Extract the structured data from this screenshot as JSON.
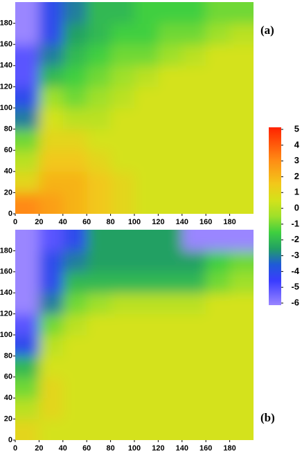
{
  "chart_data": [
    {
      "type": "heatmap",
      "label": "(a)",
      "x": [
        10,
        30,
        50,
        70,
        90,
        110,
        130,
        150,
        170,
        190
      ],
      "y": [
        10,
        30,
        50,
        70,
        90,
        110,
        130,
        150,
        170,
        190
      ],
      "z": [
        [
          3,
          2.5,
          2,
          1.5,
          1,
          0.5,
          0.5,
          0.5,
          0.5,
          0.5
        ],
        [
          1,
          2,
          2,
          1.5,
          1,
          0.5,
          0.5,
          0.5,
          0.5,
          0.5
        ],
        [
          0,
          1.5,
          1.5,
          1,
          0.5,
          0.5,
          0.5,
          0.5,
          0.5,
          0.5
        ],
        [
          -1,
          1,
          1,
          0.5,
          0.5,
          0.5,
          0.5,
          0.5,
          0.5,
          0.5
        ],
        [
          -3,
          0.5,
          0,
          0,
          0.5,
          0.5,
          0.5,
          0.5,
          0.5,
          0.5
        ],
        [
          -4,
          -0.5,
          -1,
          -0.5,
          0,
          0.5,
          0.5,
          0.5,
          0.5,
          0.5
        ],
        [
          -5,
          -2,
          -1.5,
          -1,
          -0.5,
          0,
          0.5,
          0.5,
          0.5,
          0.5
        ],
        [
          -5,
          -3,
          -2,
          -1.5,
          -1,
          -1,
          -0.5,
          0,
          0.5,
          0.5
        ],
        [
          -6,
          -4,
          -2.5,
          -2,
          -1.5,
          -1.5,
          -1,
          -1,
          -0.5,
          0
        ],
        [
          -6,
          -4,
          -3,
          -2,
          -2,
          -1.5,
          -1.5,
          -1.5,
          -1,
          -1
        ]
      ],
      "xlim": [
        0,
        200
      ],
      "ylim": [
        0,
        200
      ],
      "xticks": [
        0,
        20,
        40,
        60,
        80,
        100,
        120,
        140,
        160,
        180
      ],
      "yticks": [
        0,
        20,
        40,
        60,
        80,
        100,
        120,
        140,
        160,
        180
      ]
    },
    {
      "type": "heatmap",
      "label": "(b)",
      "x": [
        10,
        30,
        50,
        70,
        90,
        110,
        130,
        150,
        170,
        190
      ],
      "y": [
        10,
        30,
        50,
        70,
        90,
        110,
        130,
        150,
        170,
        190
      ],
      "z": [
        [
          1,
          0.5,
          0.5,
          0.5,
          0.5,
          0.5,
          0.5,
          0.5,
          0.5,
          0.5
        ],
        [
          0,
          1,
          0.5,
          0.5,
          0.5,
          0.5,
          0.5,
          0.5,
          0.5,
          0.5
        ],
        [
          -1,
          1,
          0.5,
          0.5,
          0.5,
          0.5,
          0.5,
          0.5,
          0.5,
          0.5
        ],
        [
          -2,
          0.5,
          0.5,
          0.5,
          0.5,
          0.5,
          0.5,
          0.5,
          0.5,
          0.5
        ],
        [
          -4,
          0,
          0.5,
          0.5,
          0.5,
          0.5,
          0.5,
          0.5,
          0.5,
          0.5
        ],
        [
          -5,
          -1,
          0,
          0.5,
          0.5,
          0.5,
          0.5,
          0.5,
          0.5,
          0.5
        ],
        [
          -6,
          -3,
          -1,
          -0.5,
          0,
          0,
          0,
          0,
          0.5,
          0.5
        ],
        [
          -6,
          -4,
          -2,
          -2,
          -2,
          -2,
          -2,
          -2,
          -1,
          -0.5
        ],
        [
          -6,
          -4,
          -3,
          -2.5,
          -2.5,
          -2.5,
          -2.5,
          -2.5,
          -1.5,
          -1
        ],
        [
          -6,
          -5,
          -4,
          -2.5,
          -2.5,
          -2.5,
          -2.5,
          -6,
          -6,
          -6
        ]
      ],
      "xlim": [
        0,
        200
      ],
      "ylim": [
        0,
        200
      ],
      "xticks": [
        0,
        20,
        40,
        60,
        80,
        100,
        120,
        140,
        160,
        180
      ],
      "yticks": [
        0,
        20,
        40,
        60,
        80,
        100,
        120,
        140,
        160,
        180
      ]
    },
    {
      "type": "colorbar",
      "zlim": [
        -6,
        5
      ],
      "zticks": [
        5,
        4,
        3,
        2,
        1,
        0,
        -1,
        -2,
        -3,
        -4,
        -5,
        -6
      ],
      "colorscale": [
        {
          "value": -6,
          "color": "#9a86ff"
        },
        {
          "value": -4.5,
          "color": "#3a3cff"
        },
        {
          "value": -3.5,
          "color": "#1f5ad8"
        },
        {
          "value": -2.5,
          "color": "#22a064"
        },
        {
          "value": -1.5,
          "color": "#3fcf3f"
        },
        {
          "value": -0.5,
          "color": "#9fe02a"
        },
        {
          "value": 0.5,
          "color": "#d4e21a"
        },
        {
          "value": 1.5,
          "color": "#f2c81a"
        },
        {
          "value": 3,
          "color": "#ff8a14"
        },
        {
          "value": 5,
          "color": "#ff2200"
        }
      ]
    }
  ]
}
